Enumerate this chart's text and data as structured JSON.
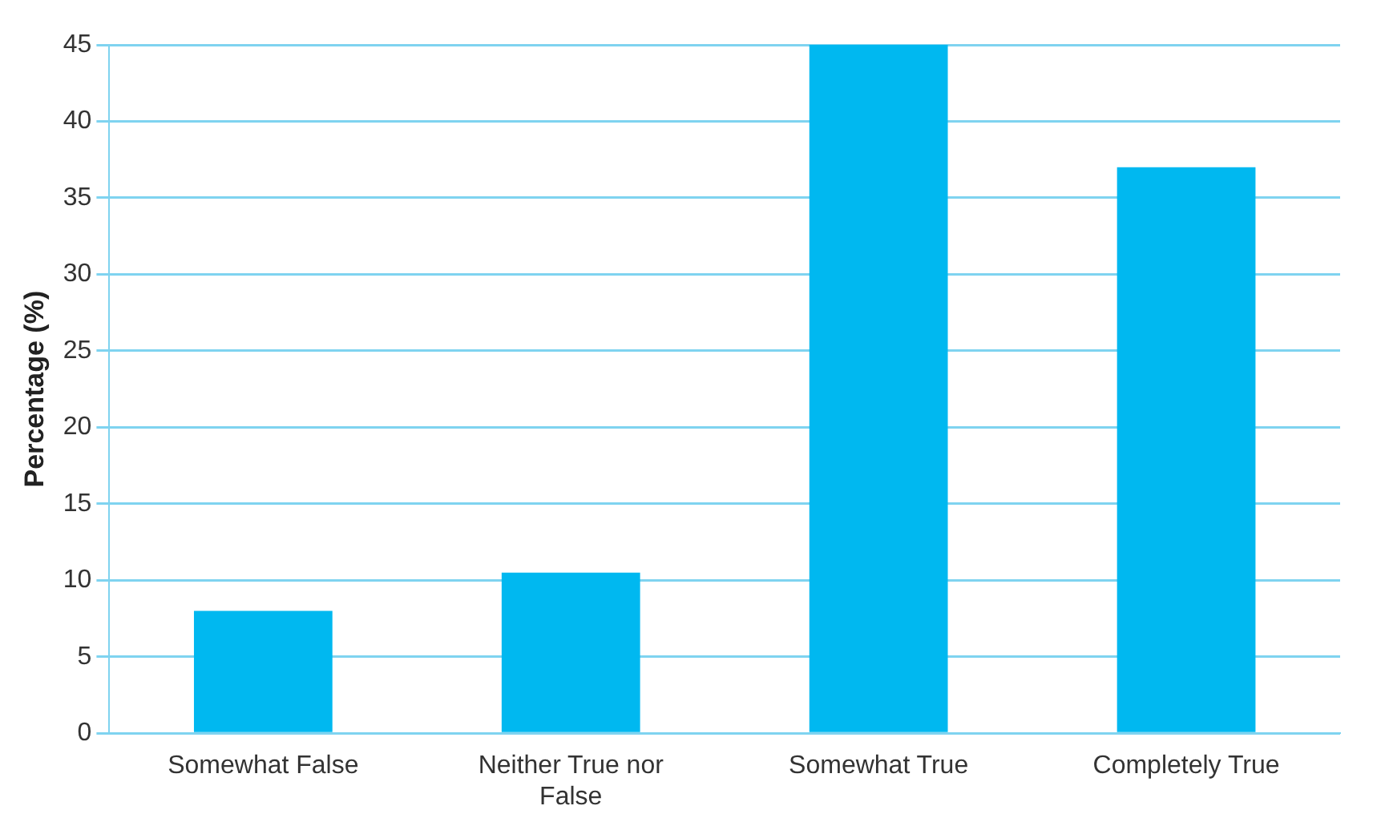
{
  "chart_data": {
    "type": "bar",
    "ylabel": "Percentage (%)",
    "categories": [
      "Somewhat False",
      "Neither True nor False",
      "Somewhat True",
      "Completely True"
    ],
    "values": [
      8,
      10.5,
      45,
      37
    ],
    "color": "#00b8f0",
    "ylim": [
      0,
      45
    ],
    "yticks": [
      0,
      5,
      10,
      15,
      20,
      25,
      30,
      35,
      40,
      45
    ],
    "grid": "y",
    "legend": false
  }
}
